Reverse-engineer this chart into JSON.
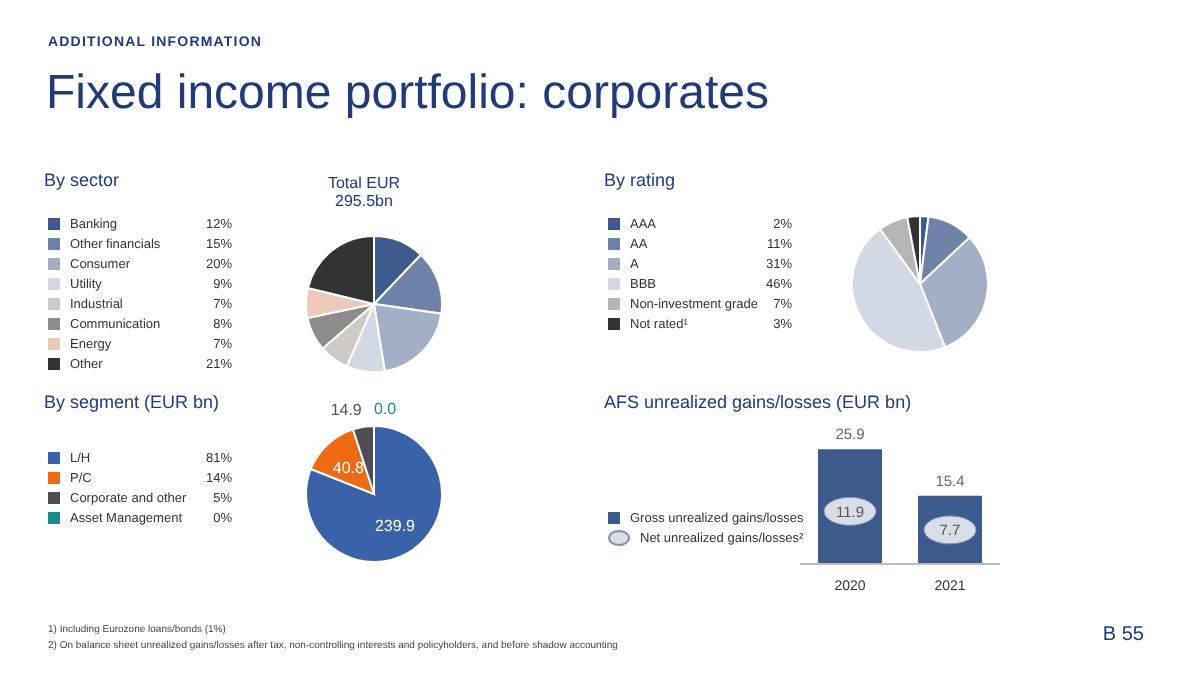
{
  "chart_data": [
    {
      "type": "other",
      "title": "Fixed income portfolio: corporates",
      "subtitle": "ADDITIONAL INFORMATION",
      "annotations": [
        "1)  Including Eurozone loans/bonds (1%)",
        "2)  On balance sheet unrealized gains/losses after tax, non-controlling interests and policyholders, and before shadow accounting",
        "B 55"
      ]
    },
    {
      "type": "pie",
      "title": "By sector",
      "subtitle": "Total EUR 295.5bn",
      "legend": "left",
      "categories": [
        "Banking",
        "Other financials",
        "Consumer",
        "Utility",
        "Industrial",
        "Communication",
        "Energy",
        "Other"
      ],
      "values": [
        12,
        15,
        20,
        9,
        7,
        8,
        7,
        21
      ],
      "value_labels": [
        "12%",
        "15%",
        "20%",
        "9%",
        "7%",
        "8%",
        "7%",
        "21%"
      ],
      "colors": [
        "#3d5a8c",
        "#6f83a8",
        "#a3afc6",
        "#d3d9e4",
        "#d0cac6",
        "#8c8c8c",
        "#ecc9b9",
        "#333333"
      ]
    },
    {
      "type": "pie",
      "title": "By rating",
      "legend": "left",
      "categories": [
        "AAA",
        "AA",
        "A",
        "BBB",
        "Non-investment grade",
        "Not rated¹"
      ],
      "values": [
        2,
        11,
        31,
        46,
        7,
        3
      ],
      "value_labels": [
        "2%",
        "11%",
        "31%",
        "46%",
        "7%",
        "3%"
      ],
      "colors": [
        "#3d5a8c",
        "#6f83a8",
        "#a3afc6",
        "#d3d9e4",
        "#b5b5b5",
        "#333333"
      ]
    },
    {
      "type": "pie",
      "title": "By segment (EUR bn)",
      "legend": "left",
      "annotations": [
        {
          "text": "239.9",
          "x": "L/H"
        },
        {
          "text": "40.8",
          "x": "P/C"
        },
        {
          "text": "14.9",
          "x": "Corporate and other"
        },
        {
          "text": "0.0",
          "x": "Asset Management"
        }
      ],
      "categories": [
        "L/H",
        "P/C",
        "Corporate and other",
        "Asset Management"
      ],
      "values": [
        81,
        14,
        5,
        0
      ],
      "value_labels": [
        "81%",
        "14%",
        "5%",
        "0%"
      ],
      "colors": [
        "#3a62a8",
        "#f06a14",
        "#4d4d55",
        "#1a8a8f"
      ]
    },
    {
      "type": "bar",
      "title": "AFS unrealized gains/losses (EUR bn)",
      "legend": "left",
      "data_labels": true,
      "tick_labels": "x",
      "categories": [
        "2020",
        "2021"
      ],
      "series": [
        {
          "name": "Gross unrealized gains/losses",
          "type": "bar",
          "color": "#3d5a8c",
          "values": [
            25.9,
            15.4
          ]
        },
        {
          "name": "Net unrealized gains/losses²",
          "type": "scatter",
          "color": "#d9dde6",
          "values": [
            11.9,
            7.7
          ]
        }
      ]
    }
  ]
}
